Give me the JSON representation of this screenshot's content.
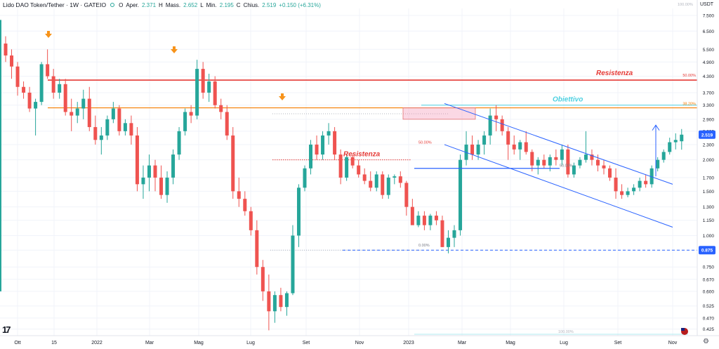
{
  "header": {
    "symbol": "Lido DAO Token/Tether · 1W · GATEIO",
    "open_label": "O",
    "open_text": "Aper.",
    "open_value": "2.371",
    "high_label": "H",
    "high_text": "Mass.",
    "high_value": "2.652",
    "low_label": "L",
    "low_text": "Min.",
    "low_value": "2.195",
    "close_label": "C",
    "close_text": "Chius.",
    "close_value": "2.519",
    "change": "+0.150 (+6.31%)"
  },
  "currency_unit": "USDT",
  "colors": {
    "up": "#26a69a",
    "down": "#ef5350",
    "resistance": "#e53935",
    "fib38": "#f57c00",
    "objective": "#4dd0e1",
    "channel": "#2962ff",
    "arrow": "#f7931a",
    "grid": "#f0f3fa",
    "price_tag": "#2962ff"
  },
  "icons": {
    "arrows": "arrow-down-icon",
    "settings": "gear-icon",
    "logo": "tradingview-logo",
    "flag": "us-flag-icon"
  },
  "chart_data": {
    "type": "candlestick",
    "title": "Lido DAO Token/Tether · 1W · GATEIO",
    "yscale": "log",
    "ylim": [
      0.4,
      8.0
    ],
    "y_ticks": [
      "7.500",
      "6.500",
      "5.500",
      "4.900",
      "4.300",
      "3.700",
      "3.300",
      "2.900",
      "2.600",
      "2.300",
      "2.000",
      "1.700",
      "1.500",
      "1.300",
      "1.150",
      "1.000",
      "0.875",
      "0.750",
      "0.670",
      "0.600",
      "0.525",
      "0.470",
      "0.425"
    ],
    "x_ticks": [
      "Ott",
      "15",
      "2022",
      "Mar",
      "Mag",
      "Lug",
      "Set",
      "Nov",
      "2023",
      "Mar",
      "Mag",
      "Lug",
      "Set",
      "Nov"
    ],
    "series": [
      {
        "candles": [
          [
            5.8,
            6.2,
            4.9,
            5.2
          ],
          [
            5.2,
            5.5,
            4.2,
            4.7
          ],
          [
            4.7,
            4.9,
            3.6,
            3.9
          ],
          [
            3.9,
            4.1,
            3.5,
            3.7
          ],
          [
            3.7,
            3.9,
            3.1,
            3.2
          ],
          [
            3.2,
            3.5,
            2.5,
            3.4
          ],
          [
            3.4,
            4.9,
            3.3,
            4.8
          ],
          [
            4.8,
            5.5,
            4.2,
            4.3
          ],
          [
            4.3,
            4.6,
            3.5,
            3.7
          ],
          [
            3.7,
            4.2,
            3.5,
            4.0
          ],
          [
            4.0,
            4.2,
            3.0,
            3.1
          ],
          [
            3.1,
            3.5,
            2.6,
            3.0
          ],
          [
            3.0,
            3.4,
            2.8,
            3.2
          ],
          [
            3.2,
            3.8,
            2.9,
            3.5
          ],
          [
            3.5,
            3.9,
            2.6,
            2.7
          ],
          [
            2.7,
            3.0,
            2.3,
            2.4
          ],
          [
            2.4,
            2.7,
            2.1,
            2.5
          ],
          [
            2.5,
            3.0,
            2.4,
            2.9
          ],
          [
            2.9,
            3.4,
            2.8,
            3.2
          ],
          [
            3.2,
            3.3,
            2.5,
            2.6
          ],
          [
            2.6,
            2.9,
            2.5,
            2.8
          ],
          [
            2.8,
            3.0,
            2.3,
            2.5
          ],
          [
            2.5,
            2.7,
            1.5,
            1.6
          ],
          [
            1.6,
            1.9,
            1.4,
            1.7
          ],
          [
            1.7,
            2.1,
            1.5,
            1.9
          ],
          [
            1.9,
            2.0,
            1.5,
            1.7
          ],
          [
            1.7,
            1.9,
            1.4,
            1.45
          ],
          [
            1.45,
            1.8,
            1.35,
            1.7
          ],
          [
            1.7,
            2.2,
            1.6,
            2.1
          ],
          [
            2.1,
            2.7,
            2.0,
            2.6
          ],
          [
            2.6,
            3.2,
            2.5,
            3.1
          ],
          [
            3.1,
            3.3,
            2.8,
            3.0
          ],
          [
            3.0,
            5.0,
            2.9,
            4.6
          ],
          [
            4.6,
            4.9,
            3.5,
            3.7
          ],
          [
            3.7,
            4.4,
            3.4,
            4.1
          ],
          [
            4.1,
            4.3,
            3.2,
            3.3
          ],
          [
            3.3,
            3.5,
            2.9,
            3.1
          ],
          [
            3.1,
            3.3,
            2.4,
            2.5
          ],
          [
            2.5,
            2.7,
            1.4,
            1.5
          ],
          [
            1.5,
            1.7,
            1.3,
            1.4
          ],
          [
            1.4,
            1.5,
            1.2,
            1.25
          ],
          [
            1.25,
            1.3,
            1.0,
            1.05
          ],
          [
            1.05,
            1.15,
            0.7,
            0.75
          ],
          [
            0.75,
            0.8,
            0.55,
            0.6
          ],
          [
            0.6,
            0.7,
            0.42,
            0.5
          ],
          [
            0.5,
            0.6,
            0.45,
            0.58
          ],
          [
            0.58,
            0.62,
            0.5,
            0.52
          ],
          [
            0.52,
            0.6,
            0.48,
            0.59
          ],
          [
            0.59,
            1.1,
            0.58,
            1.0
          ],
          [
            1.0,
            1.6,
            0.9,
            1.55
          ],
          [
            1.55,
            1.9,
            1.5,
            1.85
          ],
          [
            1.85,
            2.4,
            1.75,
            2.3
          ],
          [
            2.3,
            2.5,
            2.0,
            2.1
          ],
          [
            2.1,
            2.6,
            2.0,
            2.5
          ],
          [
            2.5,
            2.8,
            2.3,
            2.6
          ],
          [
            2.6,
            2.7,
            2.0,
            2.1
          ],
          [
            2.1,
            2.2,
            1.6,
            1.7
          ],
          [
            1.7,
            2.1,
            1.65,
            2.05
          ],
          [
            2.05,
            2.1,
            1.85,
            1.9
          ],
          [
            1.9,
            2.0,
            1.7,
            1.75
          ],
          [
            1.75,
            1.85,
            1.6,
            1.65
          ],
          [
            1.65,
            1.8,
            1.5,
            1.55
          ],
          [
            1.55,
            1.8,
            1.5,
            1.75
          ],
          [
            1.75,
            1.8,
            1.4,
            1.45
          ],
          [
            1.45,
            1.75,
            1.4,
            1.7
          ],
          [
            1.7,
            1.75,
            1.6,
            1.72
          ],
          [
            1.72,
            1.8,
            1.55,
            1.62
          ],
          [
            1.62,
            1.65,
            1.2,
            1.3
          ],
          [
            1.3,
            1.4,
            1.15,
            1.1
          ],
          [
            1.1,
            1.25,
            1.08,
            1.2
          ],
          [
            1.2,
            1.25,
            1.05,
            1.1
          ],
          [
            1.1,
            1.22,
            1.05,
            1.2
          ],
          [
            1.2,
            1.25,
            1.1,
            1.15
          ],
          [
            1.15,
            1.2,
            0.9,
            0.9
          ],
          [
            0.9,
            1.05,
            0.85,
            0.98
          ],
          [
            0.98,
            1.1,
            0.9,
            1.05
          ],
          [
            1.05,
            2.1,
            1.0,
            2.0
          ],
          [
            2.0,
            2.6,
            1.9,
            2.3
          ],
          [
            2.3,
            2.5,
            2.0,
            2.1
          ],
          [
            2.1,
            2.4,
            2.0,
            2.3
          ],
          [
            2.3,
            2.6,
            2.1,
            2.5
          ],
          [
            2.5,
            3.2,
            2.3,
            3.0
          ],
          [
            3.0,
            3.3,
            2.6,
            2.9
          ],
          [
            2.9,
            3.0,
            2.5,
            2.6
          ],
          [
            2.6,
            2.7,
            2.0,
            2.3
          ],
          [
            2.3,
            2.5,
            2.1,
            2.2
          ],
          [
            2.2,
            2.4,
            2.0,
            2.35
          ],
          [
            2.35,
            2.6,
            2.1,
            2.15
          ],
          [
            2.15,
            2.2,
            1.8,
            1.9
          ],
          [
            1.9,
            2.05,
            1.75,
            2.0
          ],
          [
            2.0,
            2.1,
            1.85,
            1.9
          ],
          [
            1.9,
            2.1,
            1.8,
            2.05
          ],
          [
            2.05,
            2.2,
            1.9,
            2.0
          ],
          [
            2.0,
            2.3,
            1.9,
            2.2
          ],
          [
            2.2,
            2.3,
            1.7,
            1.75
          ],
          [
            1.75,
            1.95,
            1.7,
            1.9
          ],
          [
            1.9,
            2.05,
            1.85,
            2.0
          ],
          [
            2.0,
            2.6,
            1.95,
            2.1
          ],
          [
            2.1,
            2.2,
            1.9,
            2.0
          ],
          [
            2.0,
            2.1,
            1.8,
            1.9
          ],
          [
            1.9,
            2.0,
            1.75,
            1.85
          ],
          [
            1.85,
            1.9,
            1.65,
            1.7
          ],
          [
            1.7,
            1.85,
            1.4,
            1.5
          ],
          [
            1.5,
            1.6,
            1.4,
            1.45
          ],
          [
            1.45,
            1.55,
            1.42,
            1.5
          ],
          [
            1.5,
            1.6,
            1.45,
            1.55
          ],
          [
            1.55,
            1.7,
            1.5,
            1.65
          ],
          [
            1.65,
            1.75,
            1.55,
            1.6
          ],
          [
            1.6,
            1.9,
            1.55,
            1.85
          ],
          [
            1.85,
            2.05,
            1.8,
            2.0
          ],
          [
            2.0,
            2.2,
            1.95,
            2.15
          ],
          [
            2.15,
            2.45,
            2.1,
            2.35
          ],
          [
            2.35,
            2.55,
            2.2,
            2.4
          ],
          [
            2.371,
            2.652,
            2.195,
            2.519
          ]
        ]
      }
    ],
    "current_price": "2.519",
    "level_price": "0.875",
    "annotations": {
      "resistance_top_label": "Resistenza",
      "resistance_top_fib": "50.00%",
      "objective_label": "Obiettivo",
      "objective_fib": "38.20%",
      "resistance_mid_label": "Resistenza",
      "fib_50_mid": "50.00%",
      "fib_0": "0.00%",
      "fib_top": "100.00%",
      "fib_bottom": "100.00%",
      "fib_center": "50.00%"
    }
  }
}
